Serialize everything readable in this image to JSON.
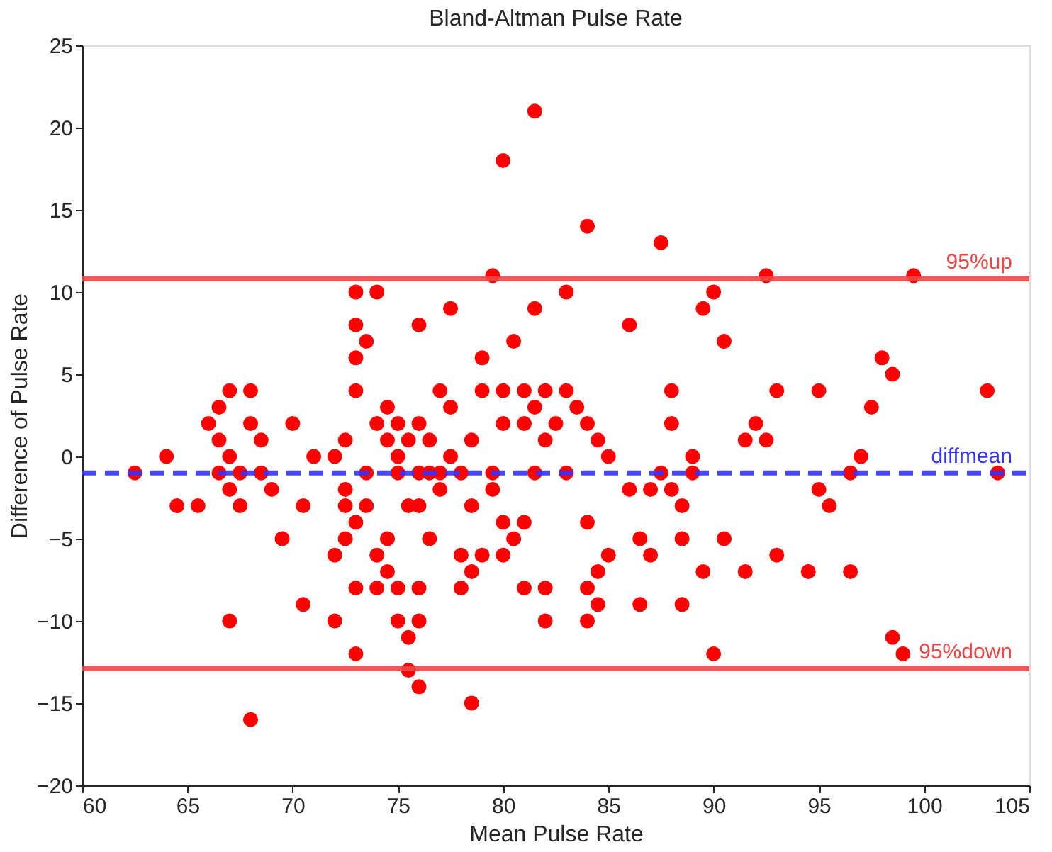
{
  "chart_data": {
    "type": "scatter",
    "title": "Bland-Altman Pulse Rate",
    "xlabel": "Mean Pulse Rate",
    "ylabel": "Difference of Pulse Rate",
    "xlim": [
      60,
      105
    ],
    "xticks": [
      60,
      65,
      70,
      75,
      80,
      85,
      90,
      95,
      100,
      105
    ],
    "ylim": [
      -20,
      25
    ],
    "yticks": [
      -20,
      -15,
      -10,
      -5,
      0,
      5,
      10,
      15,
      20,
      25
    ],
    "grid": false,
    "marker": "circle",
    "series": [
      {
        "color": "#ff0000",
        "x": [
          62.5,
          64,
          64.5,
          65.5,
          66,
          66.5,
          66.5,
          67,
          67,
          66.5,
          67,
          67.5,
          67.5,
          67,
          68,
          68,
          68.5,
          68.5,
          69,
          68,
          69.5,
          70,
          70.5,
          70.5,
          71,
          72,
          72,
          72,
          72.5,
          72.5,
          72.5,
          72.5,
          73,
          73,
          73,
          73,
          73,
          73,
          73,
          73.5,
          73.5,
          73.5,
          74,
          74,
          74,
          74,
          74.5,
          74.5,
          74.5,
          74.5,
          75,
          75,
          75,
          75,
          75,
          75.5,
          75.5,
          75.5,
          75.5,
          76,
          76,
          76,
          76,
          76,
          76,
          76,
          76.5,
          76.5,
          76.5,
          77,
          77,
          77,
          77.5,
          77.5,
          77.5,
          78,
          78,
          78,
          78.5,
          78.5,
          78.5,
          78.5,
          79,
          79,
          79,
          79.5,
          79.5,
          79.5,
          80,
          80,
          80,
          80,
          80,
          80.5,
          80.5,
          81,
          81,
          81,
          81,
          81.5,
          81.5,
          81.5,
          81.5,
          82,
          82,
          82,
          82,
          82.5,
          83,
          83,
          83,
          83.5,
          84,
          84,
          84,
          84,
          84,
          84.5,
          84.5,
          84.5,
          85,
          85,
          86,
          86,
          86.5,
          86.5,
          87,
          87,
          87.5,
          87.5,
          88,
          88,
          88,
          88.5,
          88.5,
          88.5,
          89,
          89,
          89.5,
          89.5,
          90,
          90,
          90.5,
          90.5,
          91.5,
          91.5,
          92,
          92.5,
          92.5,
          93,
          93,
          94.5,
          95,
          95,
          95.5,
          96.5,
          96.5,
          97,
          97.5,
          98,
          98.5,
          98.5,
          99,
          99.5,
          103,
          103.5
        ],
        "values": [
          -1,
          0,
          -3,
          -3,
          2,
          3,
          1,
          4,
          0,
          -1,
          -2,
          -1,
          -3,
          -10,
          4,
          2,
          1,
          -1,
          -2,
          -16,
          -5,
          2,
          -3,
          -9,
          0,
          0,
          -6,
          -10,
          -5,
          1,
          -2,
          -3,
          10,
          8,
          6,
          4,
          -4,
          -8,
          -12,
          7,
          -1,
          -3,
          10,
          2,
          -6,
          -8,
          3,
          1,
          -5,
          -7,
          2,
          0,
          -1,
          -8,
          -10,
          1,
          -3,
          -11,
          -13,
          2,
          -1,
          -3,
          -8,
          -10,
          -14,
          8,
          1,
          -1,
          -5,
          4,
          -1,
          -2,
          9,
          3,
          0,
          -1,
          -6,
          -8,
          1,
          -3,
          -7,
          -15,
          6,
          4,
          -6,
          11,
          -1,
          -2,
          18,
          4,
          -4,
          -6,
          2,
          7,
          -5,
          4,
          2,
          -4,
          -8,
          21,
          9,
          3,
          -1,
          4,
          1,
          -8,
          -10,
          2,
          10,
          4,
          -1,
          3,
          14,
          2,
          -4,
          -8,
          -10,
          1,
          -7,
          -9,
          0,
          -6,
          8,
          -2,
          -5,
          -9,
          -2,
          -6,
          13,
          -1,
          2,
          4,
          -2,
          -3,
          -5,
          -9,
          0,
          -1,
          9,
          -7,
          10,
          -12,
          7,
          -5,
          1,
          -7,
          2,
          11,
          1,
          4,
          -6,
          -7,
          4,
          -2,
          -3,
          -1,
          -7,
          0,
          3,
          6,
          5,
          -11,
          -12,
          11,
          4,
          -1
        ]
      }
    ],
    "ref_lines": [
      {
        "axis": "y",
        "value": 10.8,
        "label": "95%up",
        "color": "#f04545",
        "line_style": "solid"
      },
      {
        "axis": "y",
        "value": -1,
        "label": "diffmean",
        "color": "#3333ff",
        "line_style": "dashed"
      },
      {
        "axis": "y",
        "value": -12.9,
        "label": "95%down",
        "color": "#f04545",
        "line_style": "solid"
      }
    ]
  }
}
